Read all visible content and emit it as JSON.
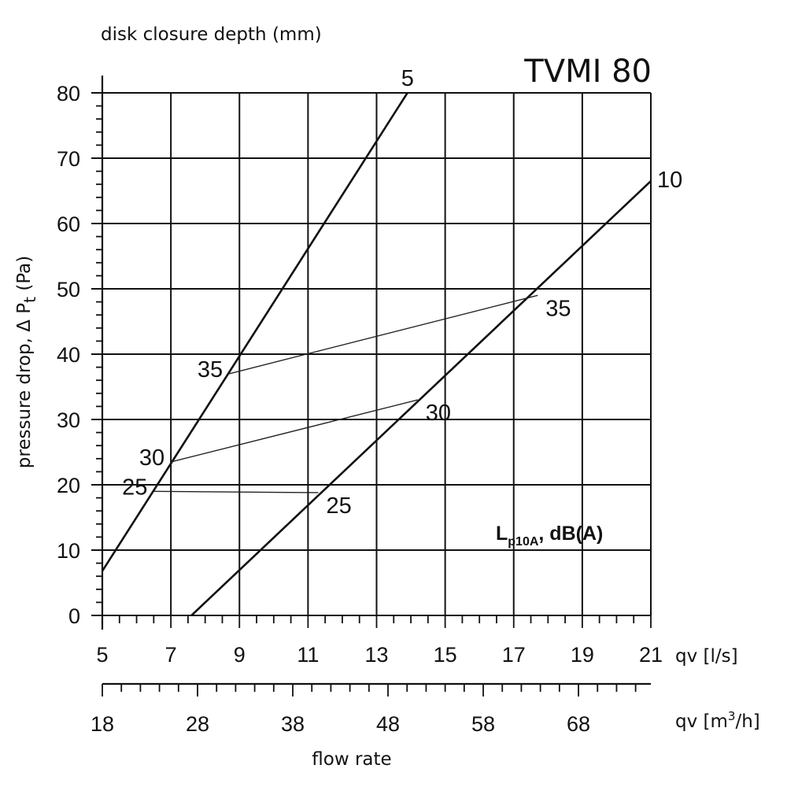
{
  "chart_data": {
    "type": "line",
    "title": "TVMI 80",
    "top_label": "disk closure depth (mm)",
    "ylabel": "pressure drop,  Δ Pt (Pa)",
    "xlabel_bottom": "flow rate",
    "x_unit_ls": "qv [l/s]",
    "x_unit_m3h": "qv [m³/h]",
    "noise_label": "Lp10A, dB(A)",
    "xlim_ls": [
      5,
      21
    ],
    "ylim": [
      0,
      80
    ],
    "grid": true,
    "x_ticks_ls": [
      "5",
      "7",
      "9",
      "11",
      "13",
      "15",
      "17",
      "19",
      "21"
    ],
    "x_ticks_m3h": [
      "18",
      "28",
      "38",
      "48",
      "58",
      "68"
    ],
    "y_ticks": [
      "0",
      "10",
      "20",
      "30",
      "40",
      "50",
      "60",
      "70",
      "80"
    ],
    "series": [
      {
        "name": "5",
        "x": [
          5.0,
          13.9
        ],
        "y": [
          6.8,
          80.0
        ]
      },
      {
        "name": "10",
        "x": [
          7.6,
          21.0
        ],
        "y": [
          0.0,
          66.5
        ]
      }
    ],
    "noise_lines": [
      {
        "label_left": "35",
        "label_right": "35",
        "x": [
          8.7,
          17.7
        ],
        "y": [
          37.0,
          49.0
        ]
      },
      {
        "label_left": "30",
        "label_right": "30",
        "x": [
          7.0,
          14.2
        ],
        "y": [
          23.5,
          33.0
        ]
      },
      {
        "label_left": "25",
        "label_right": "25",
        "x": [
          6.5,
          11.3
        ],
        "y": [
          19.0,
          18.8
        ]
      }
    ]
  }
}
